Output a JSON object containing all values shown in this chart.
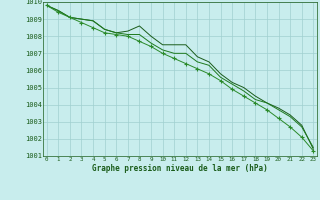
{
  "xlabel": "Graphe pression niveau de la mer (hPa)",
  "ylim": [
    1001,
    1010
  ],
  "xlim": [
    0,
    23
  ],
  "bg_color": "#c8eded",
  "grid_color": "#a0d0d0",
  "line_color_dark": "#1a5c1a",
  "line_color_mid": "#1e7a1e",
  "line_color_light": "#2a8a2a",
  "hours": [
    0,
    1,
    2,
    3,
    4,
    5,
    6,
    7,
    8,
    9,
    10,
    11,
    12,
    13,
    14,
    15,
    16,
    17,
    18,
    19,
    20,
    21,
    22,
    23
  ],
  "series1": [
    1009.8,
    1009.5,
    1009.1,
    1009.0,
    1008.9,
    1008.4,
    1008.2,
    1008.3,
    1008.6,
    1008.0,
    1007.5,
    1007.5,
    1007.5,
    1006.8,
    1006.5,
    1005.8,
    1005.3,
    1005.0,
    1004.5,
    1004.1,
    1003.8,
    1003.4,
    1002.8,
    1001.4
  ],
  "series2": [
    1009.8,
    1009.5,
    1009.1,
    1009.0,
    1008.9,
    1008.4,
    1008.2,
    1008.1,
    1008.1,
    1007.6,
    1007.2,
    1007.0,
    1007.0,
    1006.5,
    1006.3,
    1005.6,
    1005.2,
    1004.8,
    1004.3,
    1004.1,
    1003.7,
    1003.3,
    1002.7,
    1001.5
  ],
  "series3": [
    1009.8,
    1009.4,
    1009.1,
    1008.8,
    1008.5,
    1008.2,
    1008.1,
    1008.0,
    1007.7,
    1007.4,
    1007.0,
    1006.7,
    1006.4,
    1006.1,
    1005.8,
    1005.4,
    1004.9,
    1004.5,
    1004.1,
    1003.7,
    1003.2,
    1002.7,
    1002.1,
    1001.3
  ]
}
